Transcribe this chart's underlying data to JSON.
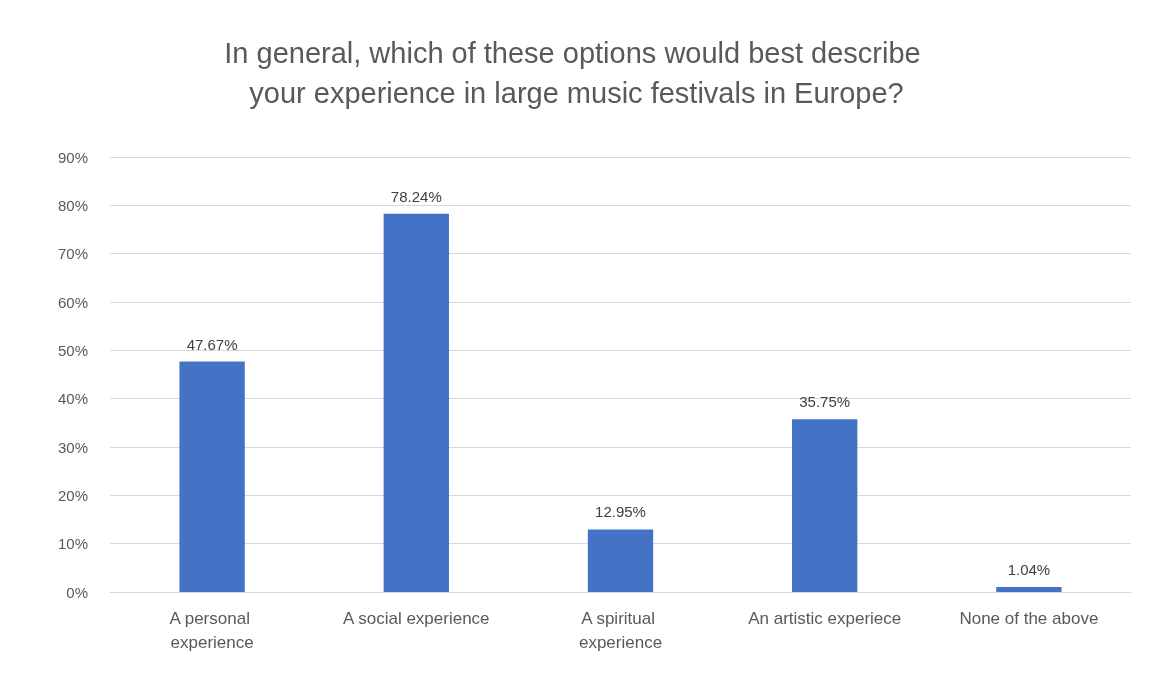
{
  "chart_data": {
    "type": "bar",
    "title": "In general, which of these options would best describe your experience in large music festivals in Europe?",
    "categories": [
      "A personal experience",
      "A social experience",
      "A spiritual experience",
      "An artistic experiece",
      "None of the above"
    ],
    "values": [
      47.67,
      78.24,
      12.95,
      35.75,
      1.04
    ],
    "value_labels": [
      "47.67%",
      "78.24%",
      "12.95%",
      "35.75%",
      "1.04%"
    ],
    "color": "#4472c4",
    "ylim": [
      0,
      90
    ],
    "yticks": [
      {
        "value": 0,
        "label": "0%"
      },
      {
        "value": 10,
        "label": "10%"
      },
      {
        "value": 20,
        "label": "20%"
      },
      {
        "value": 30,
        "label": "30%"
      },
      {
        "value": 40,
        "label": "40%"
      },
      {
        "value": 50,
        "label": "50%"
      },
      {
        "value": 60,
        "label": "60%"
      },
      {
        "value": 70,
        "label": "70%"
      },
      {
        "value": 80,
        "label": "80%"
      },
      {
        "value": 90,
        "label": "90%"
      }
    ],
    "grid": "y"
  }
}
